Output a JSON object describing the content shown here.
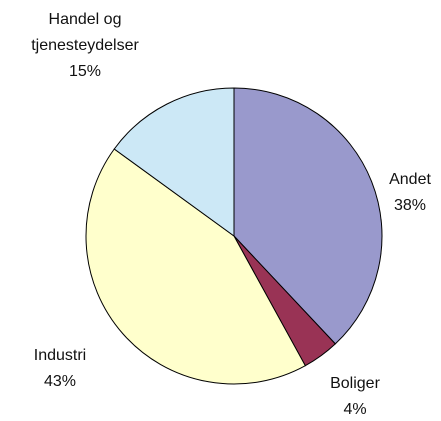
{
  "chart_data": {
    "type": "pie",
    "categories": [
      "Andet",
      "Boliger",
      "Industri",
      "Handel og\ntjenesteydelser"
    ],
    "values": [
      38,
      4,
      43,
      15
    ],
    "value_labels": [
      "38%",
      "4%",
      "43%",
      "15%"
    ],
    "colors": [
      "#9999cc",
      "#993355",
      "#ffffcc",
      "#cce8f6"
    ]
  }
}
